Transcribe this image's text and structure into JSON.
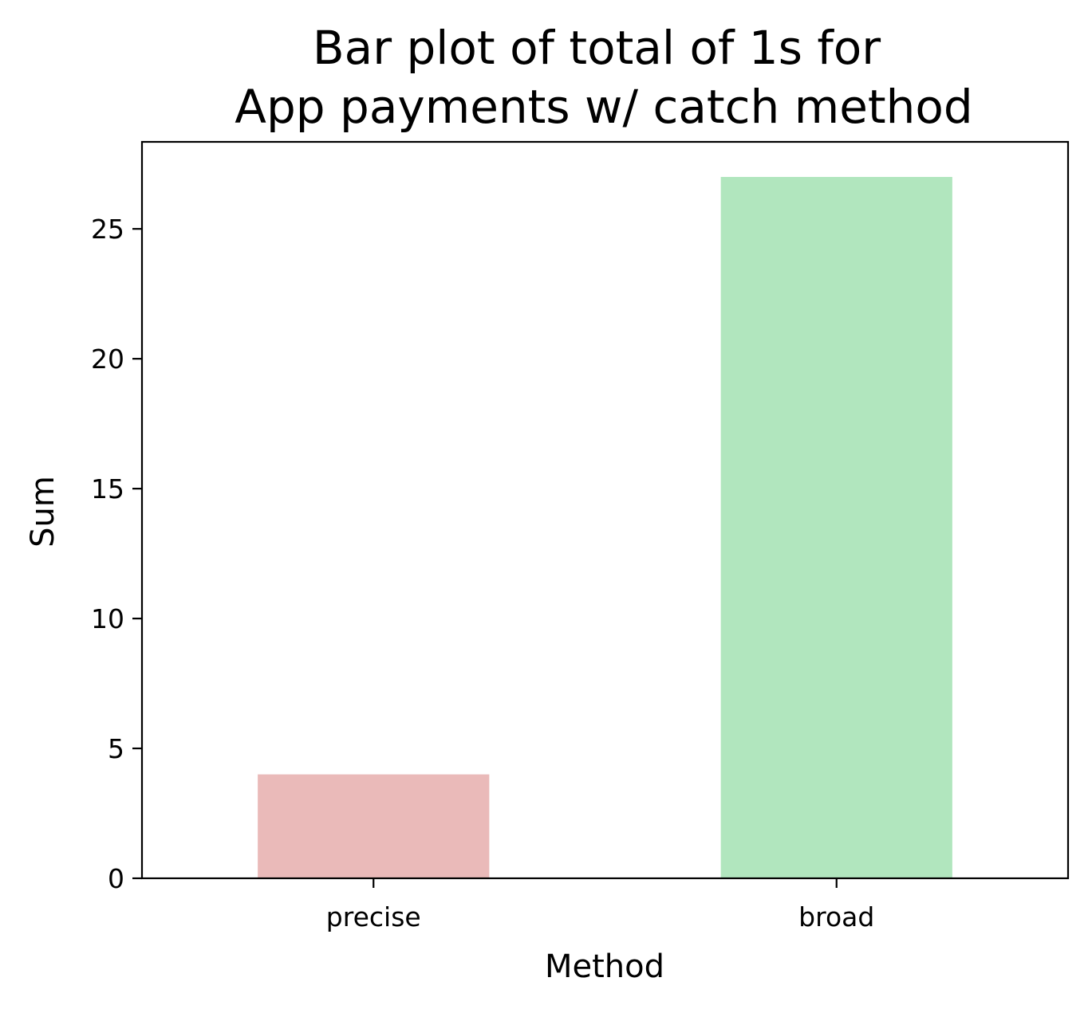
{
  "chart_data": {
    "type": "bar",
    "title_lines": [
      "Bar plot of total of 1s for",
      "App payments w/ catch method"
    ],
    "xlabel": "Method",
    "ylabel": "Sum",
    "categories": [
      "precise",
      "broad"
    ],
    "values": [
      4,
      27
    ],
    "colors": [
      "#eabab9",
      "#b1e6be"
    ],
    "ylim": [
      0,
      28.35
    ],
    "yticks": [
      0,
      5,
      10,
      15,
      20,
      25
    ],
    "grid": false,
    "legend": "none"
  }
}
